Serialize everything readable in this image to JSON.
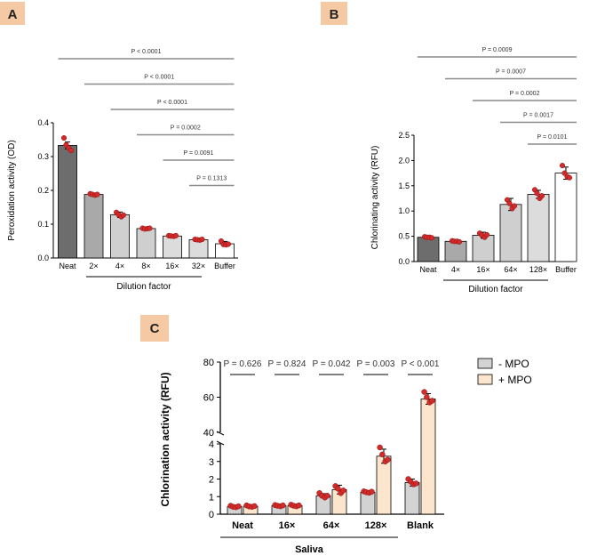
{
  "chart_data": [
    {
      "panel": "A",
      "type": "bar",
      "ylabel": "Peroxidation activity (OD)",
      "xlabel": "Dilution factor",
      "categories": [
        "Neat",
        "2×",
        "4×",
        "8×",
        "16×",
        "32×",
        "Buffer"
      ],
      "values": [
        0.333,
        0.188,
        0.128,
        0.087,
        0.065,
        0.054,
        0.042
      ],
      "errors": [
        0.01,
        0.004,
        0.008,
        0.003,
        0.002,
        0.002,
        0.007
      ],
      "points": [
        [
          0.355,
          0.335,
          0.325,
          0.318
        ],
        [
          0.19,
          0.188,
          0.186,
          0.188
        ],
        [
          0.135,
          0.128,
          0.122,
          0.127
        ],
        [
          0.088,
          0.086,
          0.087,
          0.088
        ],
        [
          0.066,
          0.065,
          0.064,
          0.066
        ],
        [
          0.055,
          0.054,
          0.053,
          0.055
        ],
        [
          0.05,
          0.04,
          0.039,
          0.041
        ]
      ],
      "bar_colors": [
        "#6d6d6d",
        "#a9a9a9",
        "#cfcfcf",
        "#cfcfcf",
        "#dcdcdc",
        "#dcdcdc",
        "#ffffff"
      ],
      "ylim": [
        0,
        0.4
      ],
      "yticks": [
        "0.0",
        "0.1",
        "0.2",
        "0.3",
        "0.4"
      ],
      "comparisons": [
        {
          "label": "P < 0.0001",
          "from": 0
        },
        {
          "label": "P < 0.0001",
          "from": 1
        },
        {
          "label": "P < 0.0001",
          "from": 2
        },
        {
          "label": "P = 0.0002",
          "from": 3
        },
        {
          "label": "P = 0.0091",
          "from": 4
        },
        {
          "label": "P = 0.1313",
          "from": 5
        }
      ]
    },
    {
      "panel": "B",
      "type": "bar",
      "ylabel": "Chlorinating activity (RFU)",
      "xlabel": "Dilution factor",
      "categories": [
        "Neat",
        "4×",
        "16×",
        "64×",
        "128×",
        "Buffer"
      ],
      "values": [
        0.48,
        0.4,
        0.52,
        1.13,
        1.33,
        1.75
      ],
      "errors": [
        0.02,
        0.01,
        0.06,
        0.12,
        0.08,
        0.12
      ],
      "points": [
        [
          0.49,
          0.48,
          0.48,
          0.47
        ],
        [
          0.41,
          0.4,
          0.4,
          0.39
        ],
        [
          0.56,
          0.52,
          0.48,
          0.53
        ],
        [
          1.22,
          1.15,
          1.05,
          1.1
        ],
        [
          1.42,
          1.35,
          1.25,
          1.3
        ],
        [
          1.9,
          1.75,
          1.68,
          1.66
        ]
      ],
      "bar_colors": [
        "#6d6d6d",
        "#a9a9a9",
        "#cfcfcf",
        "#cfcfcf",
        "#dcdcdc",
        "#ffffff"
      ],
      "ylim": [
        0,
        2.5
      ],
      "yticks": [
        "0.0",
        "0.5",
        "1.0",
        "1.5",
        "2.0",
        "2.5"
      ],
      "comparisons": [
        {
          "label": "P = 0.0009",
          "from": 0
        },
        {
          "label": "P = 0.0007",
          "from": 1
        },
        {
          "label": "P = 0.0002",
          "from": 2
        },
        {
          "label": "P = 0.0017",
          "from": 3
        },
        {
          "label": "P = 0.0101",
          "from": 4
        }
      ]
    },
    {
      "panel": "C",
      "type": "bar",
      "ylabel": "Chlorination activity (RFU)",
      "xlabel": "Saliva",
      "categories": [
        "Neat",
        "16×",
        "64×",
        "128×",
        "Blank"
      ],
      "axis_break": {
        "lower": [
          0,
          4
        ],
        "upper": [
          40,
          80
        ]
      },
      "yticks_lower": [
        "0",
        "1",
        "2",
        "3",
        "4"
      ],
      "yticks_upper": [
        "40",
        "60",
        "80"
      ],
      "series": [
        {
          "name": "- MPO",
          "color": "#d3d3d3",
          "values": [
            0.43,
            0.48,
            1.05,
            1.25,
            1.8
          ],
          "errors": [
            0.05,
            0.06,
            0.12,
            0.08,
            0.2
          ],
          "points": [
            [
              0.48,
              0.42,
              0.4,
              0.45
            ],
            [
              0.52,
              0.48,
              0.45,
              0.5
            ],
            [
              1.2,
              1.05,
              0.95,
              1.05
            ],
            [
              1.3,
              1.25,
              1.22,
              1.28
            ],
            [
              2.0,
              1.85,
              1.7,
              1.75
            ]
          ]
        },
        {
          "name": "+ MPO",
          "color": "#fbe5cc",
          "values": [
            0.45,
            0.48,
            1.4,
            3.3,
            59
          ],
          "errors": [
            0.04,
            0.06,
            0.25,
            0.4,
            3
          ],
          "points": [
            [
              0.5,
              0.44,
              0.42,
              0.46
            ],
            [
              0.54,
              0.48,
              0.45,
              0.5
            ],
            [
              1.6,
              1.45,
              1.2,
              1.35
            ],
            [
              3.8,
              3.4,
              3.0,
              3.1
            ],
            [
              63,
              60,
              57,
              58
            ]
          ]
        }
      ],
      "pvalues": [
        "P = 0.626",
        "P = 0.824",
        "P = 0.042",
        "P = 0.003",
        "P < 0.001"
      ]
    }
  ],
  "colors": {
    "dot": "#d42a2a",
    "dot_stroke": "#8a1010",
    "badge": "#f6c9a5",
    "bracket": "#8c8c8c"
  }
}
